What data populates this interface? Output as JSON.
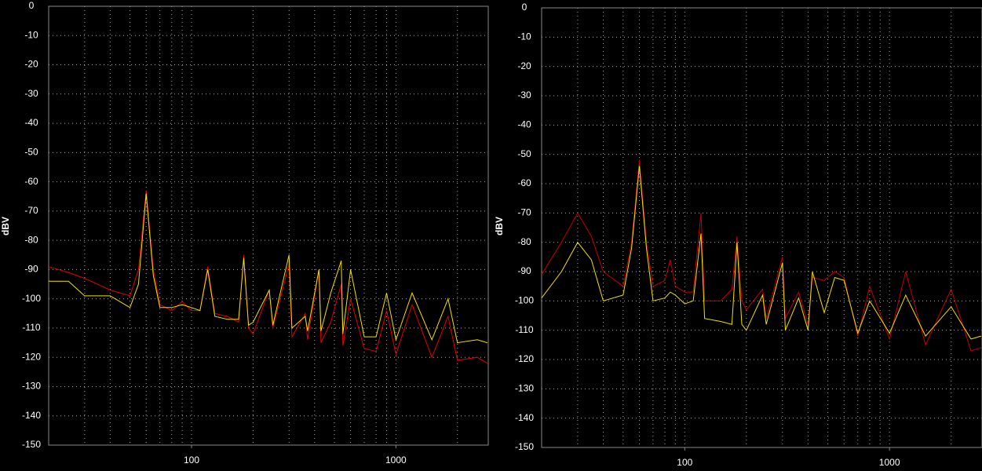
{
  "chart_data": [
    {
      "type": "line",
      "ylabel": "dBV",
      "xscale": "log",
      "grid": true,
      "xlim": [
        20,
        2830
      ],
      "ylim": [
        -150,
        0
      ],
      "xticks": [
        100,
        1000
      ],
      "xgrid": [
        20,
        30,
        40,
        50,
        60,
        70,
        80,
        90,
        100,
        200,
        300,
        400,
        500,
        600,
        700,
        800,
        900,
        1000,
        2000
      ],
      "yticks": [
        0,
        -10,
        -20,
        -30,
        -40,
        -50,
        -60,
        -70,
        -80,
        -90,
        -100,
        -110,
        -120,
        -130,
        -140,
        -150
      ],
      "x": [
        20,
        25,
        30,
        40,
        50,
        55,
        60,
        65,
        70,
        80,
        90,
        100,
        110,
        120,
        130,
        150,
        170,
        180,
        190,
        200,
        240,
        250,
        300,
        310,
        360,
        370,
        420,
        430,
        480,
        540,
        550,
        600,
        700,
        800,
        900,
        1000,
        1200,
        1500,
        1800,
        2000,
        2500,
        2800
      ],
      "series": [
        {
          "color": "#e00000",
          "values": [
            -89,
            -91,
            -93,
            -97,
            -99,
            -90,
            -63,
            -90,
            -102,
            -104,
            -101,
            -104,
            -104,
            -89,
            -105,
            -106,
            -108,
            -85,
            -110,
            -112,
            -97,
            -110,
            -88,
            -113,
            -105,
            -114,
            -90,
            -115,
            -108,
            -95,
            -116,
            -100,
            -117,
            -118,
            -104,
            -119,
            -102,
            -120,
            -106,
            -121,
            -120,
            -122
          ]
        },
        {
          "color": "#f0e000",
          "values": [
            -94,
            -94,
            -99,
            -99,
            -103,
            -95,
            -64,
            -92,
            -103,
            -103,
            -102,
            -103,
            -104,
            -90,
            -106,
            -107,
            -107,
            -86,
            -109,
            -108,
            -97,
            -109,
            -85,
            -110,
            -106,
            -111,
            -90,
            -111,
            -98,
            -87,
            -112,
            -90,
            -113,
            -113,
            -98,
            -114,
            -98,
            -114,
            -100,
            -115,
            -114,
            -115
          ]
        }
      ]
    },
    {
      "type": "line",
      "ylabel": "dBV",
      "xscale": "log",
      "grid": true,
      "xlim": [
        20,
        2830
      ],
      "ylim": [
        -150,
        0
      ],
      "xticks": [
        100,
        1000
      ],
      "xgrid": [
        20,
        30,
        40,
        50,
        60,
        70,
        80,
        90,
        100,
        200,
        300,
        400,
        500,
        600,
        700,
        800,
        900,
        1000,
        2000
      ],
      "yticks": [
        0,
        -10,
        -20,
        -30,
        -40,
        -50,
        -60,
        -70,
        -80,
        -90,
        -100,
        -110,
        -120,
        -130,
        -140,
        -150
      ],
      "x": [
        20,
        25,
        30,
        35,
        40,
        50,
        55,
        60,
        65,
        70,
        80,
        85,
        90,
        100,
        110,
        120,
        125,
        150,
        170,
        180,
        190,
        200,
        240,
        250,
        300,
        310,
        360,
        400,
        420,
        480,
        540,
        600,
        700,
        800,
        1000,
        1200,
        1500,
        2000,
        2500,
        2800
      ],
      "series": [
        {
          "color": "#c00000",
          "values": [
            -91,
            -80,
            -70,
            -78,
            -90,
            -95,
            -80,
            -52,
            -80,
            -95,
            -93,
            -86,
            -95,
            -97,
            -97,
            -70,
            -100,
            -100,
            -96,
            -78,
            -100,
            -103,
            -96,
            -106,
            -85,
            -106,
            -97,
            -108,
            -92,
            -93,
            -90,
            -92,
            -112,
            -95,
            -113,
            -90,
            -115,
            -96,
            -117,
            -116
          ]
        },
        {
          "color": "#f0e000",
          "values": [
            -99,
            -90,
            -80,
            -86,
            -100,
            -98,
            -82,
            -54,
            -82,
            -100,
            -99,
            -97,
            -98,
            -101,
            -100,
            -77,
            -106,
            -107,
            -108,
            -80,
            -108,
            -110,
            -98,
            -108,
            -87,
            -110,
            -99,
            -110,
            -90,
            -104,
            -92,
            -93,
            -111,
            -100,
            -111,
            -98,
            -112,
            -102,
            -113,
            -112
          ]
        }
      ]
    }
  ]
}
